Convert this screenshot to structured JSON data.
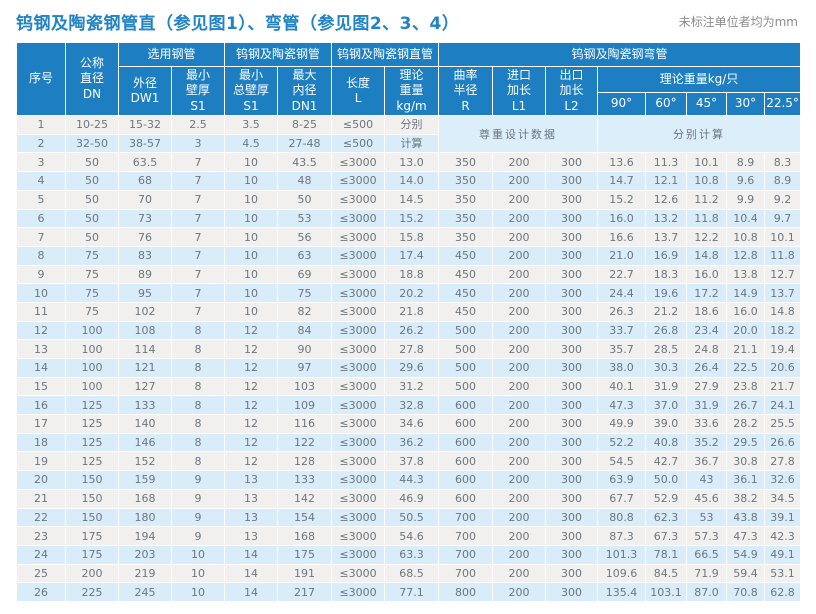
{
  "title": "钨钢及陶瓷钢管直（参见图1）、弯管（参见图2、3、4）",
  "unit_note": "未标注单位者均为mm",
  "colors": {
    "title_color": "#2283c5",
    "note_color": "#8c8c8c",
    "header_bg": "#1d7ec1",
    "row_odd": "#f1f0ee",
    "row_even": "#d9ecf9",
    "row_merged": "#dceef9",
    "cell_text": "#6d7680"
  },
  "table": {
    "header": {
      "index": "序号",
      "dn": "公称\n直径\nDN",
      "group_steel_pipe": "选用钢管",
      "group_ts_pipe": "钨钢及陶瓷钢管",
      "group_straight": "钨钢及陶瓷钢直管",
      "group_bend": "钨钢及陶瓷钢弯管",
      "dw1": "外径\nDW1",
      "s1_min": "最小\n壁厚\nS1",
      "s1_total": "最小\n总壁厚\nS1",
      "dn1": "最大\n内径\nDN1",
      "length": "长度\nL",
      "weight_m": "理论\n重量\nkg/m",
      "radius": "曲率\n半径\nR",
      "inlet": "进口\n加长\nL1",
      "outlet": "出口\n加长\nL2",
      "weight_piece": "理论重量kg/只",
      "degrees": [
        "90°",
        "60°",
        "45°",
        "30°",
        "22.5°"
      ]
    },
    "merged_design_note": "尊重设计数据",
    "merged_calc_note": "分别计算",
    "special_rows": [
      {
        "cells": [
          "1",
          "10-25",
          "15-32",
          "2.5",
          "3.5",
          "8-25",
          "≤500",
          "分别"
        ]
      },
      {
        "cells": [
          "2",
          "32-50",
          "38-57",
          "3",
          "4.5",
          "27-48",
          "≤500",
          "计算"
        ]
      }
    ],
    "rows": [
      [
        "3",
        "50",
        "63.5",
        "7",
        "10",
        "43.5",
        "≤3000",
        "13.0",
        "350",
        "200",
        "300",
        "13.6",
        "11.3",
        "10.1",
        "8.9",
        "8.3"
      ],
      [
        "4",
        "50",
        "68",
        "7",
        "10",
        "48",
        "≤3000",
        "14.0",
        "350",
        "200",
        "300",
        "14.7",
        "12.1",
        "10.8",
        "9.6",
        "8.9"
      ],
      [
        "5",
        "50",
        "70",
        "7",
        "10",
        "50",
        "≤3000",
        "14.5",
        "350",
        "200",
        "300",
        "15.2",
        "12.6",
        "11.2",
        "9.9",
        "9.2"
      ],
      [
        "6",
        "50",
        "73",
        "7",
        "10",
        "53",
        "≤3000",
        "15.2",
        "350",
        "200",
        "300",
        "16.0",
        "13.2",
        "11.8",
        "10.4",
        "9.7"
      ],
      [
        "7",
        "50",
        "76",
        "7",
        "10",
        "56",
        "≤3000",
        "15.8",
        "350",
        "200",
        "300",
        "16.6",
        "13.7",
        "12.2",
        "10.8",
        "10.1"
      ],
      [
        "8",
        "75",
        "83",
        "7",
        "10",
        "63",
        "≤3000",
        "17.4",
        "450",
        "200",
        "300",
        "21.0",
        "16.9",
        "14.8",
        "12.8",
        "11.8"
      ],
      [
        "9",
        "75",
        "89",
        "7",
        "10",
        "69",
        "≤3000",
        "18.8",
        "450",
        "200",
        "300",
        "22.7",
        "18.3",
        "16.0",
        "13.8",
        "12.7"
      ],
      [
        "10",
        "75",
        "95",
        "7",
        "10",
        "75",
        "≤3000",
        "20.2",
        "450",
        "200",
        "300",
        "24.4",
        "19.6",
        "17.2",
        "14.9",
        "13.7"
      ],
      [
        "11",
        "75",
        "102",
        "7",
        "10",
        "82",
        "≤3000",
        "21.8",
        "450",
        "200",
        "300",
        "26.3",
        "21.2",
        "18.6",
        "16.0",
        "14.8"
      ],
      [
        "12",
        "100",
        "108",
        "8",
        "12",
        "84",
        "≤3000",
        "26.2",
        "500",
        "200",
        "300",
        "33.7",
        "26.8",
        "23.4",
        "20.0",
        "18.2"
      ],
      [
        "13",
        "100",
        "114",
        "8",
        "12",
        "90",
        "≤3000",
        "27.8",
        "500",
        "200",
        "300",
        "35.7",
        "28.5",
        "24.8",
        "21.1",
        "19.4"
      ],
      [
        "14",
        "100",
        "121",
        "8",
        "12",
        "97",
        "≤3000",
        "29.6",
        "500",
        "200",
        "300",
        "38.0",
        "30.3",
        "26.4",
        "22.5",
        "20.6"
      ],
      [
        "15",
        "100",
        "127",
        "8",
        "12",
        "103",
        "≤3000",
        "31.2",
        "500",
        "200",
        "300",
        "40.1",
        "31.9",
        "27.9",
        "23.8",
        "21.7"
      ],
      [
        "16",
        "125",
        "133",
        "8",
        "12",
        "109",
        "≤3000",
        "32.8",
        "600",
        "200",
        "300",
        "47.3",
        "37.0",
        "31.9",
        "26.7",
        "24.1"
      ],
      [
        "17",
        "125",
        "140",
        "8",
        "12",
        "116",
        "≤3000",
        "34.6",
        "600",
        "200",
        "300",
        "49.9",
        "39.0",
        "33.6",
        "28.2",
        "25.5"
      ],
      [
        "18",
        "125",
        "146",
        "8",
        "12",
        "122",
        "≤3000",
        "36.2",
        "600",
        "200",
        "300",
        "52.2",
        "40.8",
        "35.2",
        "29.5",
        "26.6"
      ],
      [
        "19",
        "125",
        "152",
        "8",
        "12",
        "128",
        "≤3000",
        "37.8",
        "600",
        "200",
        "300",
        "54.5",
        "42.7",
        "36.7",
        "30.8",
        "27.8"
      ],
      [
        "20",
        "150",
        "159",
        "9",
        "13",
        "133",
        "≤3000",
        "44.3",
        "600",
        "200",
        "300",
        "63.9",
        "50.0",
        "43",
        "36.1",
        "32.6"
      ],
      [
        "21",
        "150",
        "168",
        "9",
        "13",
        "142",
        "≤3000",
        "46.9",
        "600",
        "200",
        "300",
        "67.7",
        "52.9",
        "45.6",
        "38.2",
        "34.5"
      ],
      [
        "22",
        "150",
        "180",
        "9",
        "13",
        "154",
        "≤3000",
        "50.5",
        "700",
        "200",
        "300",
        "80.8",
        "62.3",
        "53",
        "43.8",
        "39.1"
      ],
      [
        "23",
        "175",
        "194",
        "9",
        "13",
        "168",
        "≤3000",
        "54.6",
        "700",
        "200",
        "300",
        "87.3",
        "67.3",
        "57.3",
        "47.3",
        "42.3"
      ],
      [
        "24",
        "175",
        "203",
        "10",
        "14",
        "175",
        "≤3000",
        "63.3",
        "700",
        "200",
        "300",
        "101.3",
        "78.1",
        "66.5",
        "54.9",
        "49.1"
      ],
      [
        "25",
        "200",
        "219",
        "10",
        "14",
        "191",
        "≤3000",
        "68.5",
        "700",
        "200",
        "300",
        "109.6",
        "84.5",
        "71.9",
        "59.4",
        "53.1"
      ],
      [
        "26",
        "225",
        "245",
        "10",
        "14",
        "217",
        "≤3000",
        "77.1",
        "800",
        "200",
        "300",
        "135.4",
        "103.1",
        "87.0",
        "70.8",
        "62.8"
      ]
    ]
  }
}
